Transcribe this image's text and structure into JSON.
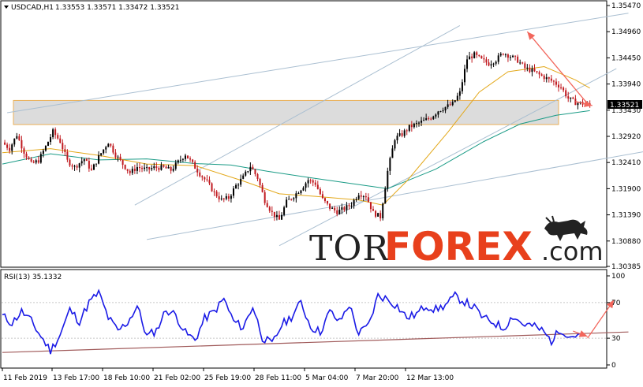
{
  "main_chart": {
    "header": {
      "symbol": "USDCAD,H1",
      "quotes": "1.33553 1.33571 1.33472 1.33521"
    },
    "current_price_label": "1.33521",
    "y_ticks": [
      "1.35470",
      "1.34960",
      "1.34450",
      "1.33940",
      "1.33430",
      "1.32920",
      "1.32410",
      "1.31900",
      "1.31390",
      "1.30880",
      "1.30385"
    ],
    "ylim": [
      1.30385,
      1.3547
    ]
  },
  "rsi_panel": {
    "header": "RSI(13) 35.1332",
    "y_ticks": [
      "100",
      "70",
      "30",
      "0"
    ]
  },
  "x_ticks": [
    "11 Feb 2019",
    "13 Feb 17:00",
    "18 Feb 10:00",
    "21 Feb 02:00",
    "25 Feb 19:00",
    "28 Feb 11:00",
    "5 Mar 04:00",
    "7 Mar 20:00",
    "12 Mar 13:00"
  ],
  "watermark": {
    "part1": "TOR",
    "part2": "FOREX",
    "part3": ".com"
  },
  "colors": {
    "bull_candle": "#000000",
    "bear_candle": "#c0191f",
    "ma_fast": "#e3a81a",
    "ma_slow": "#1a9b86",
    "trend_lines": "#aabfd1",
    "zone_fill": "#d6d6d6",
    "zone_border": "#e8a33a",
    "forecast_arrow": "#f2665c",
    "rsi_line": "#1a1ae6",
    "rsi_support": "#a05a5a"
  },
  "chart_data": {
    "type": "candlestick",
    "symbol": "USDCAD",
    "timeframe": "H1",
    "open": 1.33553,
    "high": 1.33571,
    "low": 1.33472,
    "close": 1.33521,
    "ylim": [
      1.30385,
      1.3547
    ],
    "price_path": [
      [
        0,
        1.328
      ],
      [
        3,
        1.3268
      ],
      [
        6,
        1.3295
      ],
      [
        9,
        1.3262
      ],
      [
        12,
        1.3238
      ],
      [
        15,
        1.3245
      ],
      [
        18,
        1.3272
      ],
      [
        21,
        1.3301
      ],
      [
        24,
        1.3282
      ],
      [
        27,
        1.3244
      ],
      [
        30,
        1.3232
      ],
      [
        34,
        1.3248
      ],
      [
        37,
        1.3225
      ],
      [
        40,
        1.3252
      ],
      [
        44,
        1.3281
      ],
      [
        47,
        1.3256
      ],
      [
        50,
        1.3238
      ],
      [
        53,
        1.3221
      ],
      [
        56,
        1.3232
      ],
      [
        60,
        1.3227
      ],
      [
        63,
        1.3231
      ],
      [
        67,
        1.3231
      ],
      [
        70,
        1.3226
      ],
      [
        73,
        1.3242
      ],
      [
        76,
        1.3257
      ],
      [
        79,
        1.3238
      ],
      [
        82,
        1.3219
      ],
      [
        85,
        1.3203
      ],
      [
        88,
        1.3182
      ],
      [
        91,
        1.3168
      ],
      [
        94,
        1.3172
      ],
      [
        97,
        1.3196
      ],
      [
        100,
        1.3212
      ],
      [
        103,
        1.3234
      ],
      [
        106,
        1.3211
      ],
      [
        109,
        1.3167
      ],
      [
        112,
        1.3143
      ],
      [
        115,
        1.3129
      ],
      [
        118,
        1.3164
      ],
      [
        121,
        1.3176
      ],
      [
        124,
        1.319
      ],
      [
        127,
        1.3207
      ],
      [
        130,
        1.32
      ],
      [
        133,
        1.3169
      ],
      [
        136,
        1.3153
      ],
      [
        139,
        1.3145
      ],
      [
        142,
        1.3151
      ],
      [
        145,
        1.316
      ],
      [
        148,
        1.3181
      ],
      [
        151,
        1.3176
      ],
      [
        154,
        1.3143
      ],
      [
        157,
        1.3135
      ],
      [
        160,
        1.3224
      ],
      [
        163,
        1.3288
      ],
      [
        166,
        1.3296
      ],
      [
        169,
        1.331
      ],
      [
        172,
        1.3316
      ],
      [
        175,
        1.3322
      ],
      [
        178,
        1.3329
      ],
      [
        181,
        1.3342
      ],
      [
        184,
        1.3349
      ],
      [
        187,
        1.3355
      ],
      [
        190,
        1.3377
      ],
      [
        193,
        1.3443
      ],
      [
        196,
        1.3451
      ],
      [
        199,
        1.3441
      ],
      [
        202,
        1.3434
      ],
      [
        205,
        1.3441
      ],
      [
        208,
        1.3455
      ],
      [
        211,
        1.3448
      ],
      [
        214,
        1.344
      ],
      [
        217,
        1.3425
      ],
      [
        220,
        1.342
      ],
      [
        223,
        1.3412
      ],
      [
        226,
        1.3405
      ],
      [
        229,
        1.3398
      ],
      [
        232,
        1.3388
      ],
      [
        235,
        1.3366
      ],
      [
        238,
        1.3358
      ],
      [
        241,
        1.3356
      ],
      [
        244,
        1.33521
      ]
    ],
    "ma_fast": [
      [
        0,
        1.326
      ],
      [
        20,
        1.3268
      ],
      [
        40,
        1.3255
      ],
      [
        60,
        1.3238
      ],
      [
        80,
        1.3235
      ],
      [
        100,
        1.3205
      ],
      [
        115,
        1.318
      ],
      [
        130,
        1.3175
      ],
      [
        148,
        1.3168
      ],
      [
        158,
        1.3158
      ],
      [
        168,
        1.3205
      ],
      [
        185,
        1.33
      ],
      [
        198,
        1.3378
      ],
      [
        210,
        1.3418
      ],
      [
        225,
        1.3428
      ],
      [
        238,
        1.3402
      ],
      [
        244,
        1.3386
      ]
    ],
    "ma_slow": [
      [
        0,
        1.3238
      ],
      [
        20,
        1.3258
      ],
      [
        40,
        1.3246
      ],
      [
        60,
        1.3248
      ],
      [
        80,
        1.3239
      ],
      [
        95,
        1.3236
      ],
      [
        110,
        1.3224
      ],
      [
        130,
        1.321
      ],
      [
        145,
        1.32
      ],
      [
        160,
        1.319
      ],
      [
        180,
        1.3228
      ],
      [
        200,
        1.3282
      ],
      [
        215,
        1.3316
      ],
      [
        230,
        1.3333
      ],
      [
        244,
        1.3342
      ]
    ],
    "resistance_zone": [
      1.3315,
      1.3362
    ],
    "forecast": {
      "from": [
        244,
        1.335
      ],
      "to": [
        218,
        1.3496
      ],
      "pivot": [
        245,
        1.33521
      ]
    },
    "rsi": {
      "period": 13,
      "value": 35.1332,
      "levels": [
        30,
        70
      ],
      "ylim": [
        0,
        100
      ],
      "series": [
        [
          0,
          55
        ],
        [
          4,
          47
        ],
        [
          8,
          60
        ],
        [
          12,
          49
        ],
        [
          16,
          32
        ],
        [
          20,
          16
        ],
        [
          24,
          34
        ],
        [
          28,
          62
        ],
        [
          32,
          49
        ],
        [
          36,
          70
        ],
        [
          40,
          81
        ],
        [
          44,
          53
        ],
        [
          48,
          38
        ],
        [
          52,
          48
        ],
        [
          56,
          66
        ],
        [
          60,
          32
        ],
        [
          64,
          39
        ],
        [
          68,
          62
        ],
        [
          72,
          56
        ],
        [
          76,
          36
        ],
        [
          80,
          28
        ],
        [
          84,
          52
        ],
        [
          88,
          60
        ],
        [
          92,
          74
        ],
        [
          96,
          49
        ],
        [
          100,
          42
        ],
        [
          104,
          66
        ],
        [
          108,
          31
        ],
        [
          112,
          23
        ],
        [
          116,
          45
        ],
        [
          120,
          54
        ],
        [
          124,
          70
        ],
        [
          128,
          43
        ],
        [
          132,
          37
        ],
        [
          136,
          60
        ],
        [
          140,
          48
        ],
        [
          144,
          68
        ],
        [
          148,
          35
        ],
        [
          152,
          44
        ],
        [
          156,
          78
        ],
        [
          160,
          74
        ],
        [
          164,
          66
        ],
        [
          168,
          53
        ],
        [
          172,
          57
        ],
        [
          176,
          67
        ],
        [
          180,
          62
        ],
        [
          184,
          67
        ],
        [
          188,
          77
        ],
        [
          192,
          71
        ],
        [
          196,
          64
        ],
        [
          200,
          52
        ],
        [
          204,
          48
        ],
        [
          208,
          41
        ],
        [
          212,
          55
        ],
        [
          216,
          46
        ],
        [
          220,
          44
        ],
        [
          224,
          39
        ],
        [
          228,
          27
        ],
        [
          232,
          40
        ],
        [
          236,
          32
        ],
        [
          240,
          35.1332
        ]
      ],
      "support_line": [
        [
          0,
          14
        ],
        [
          260,
          37
        ]
      ],
      "forecast_arrow": {
        "from": [
          243,
          30
        ],
        "to": [
          254,
          73
        ],
        "pivot": [
          243,
          32
        ]
      }
    },
    "trend_channel": {
      "upper_outer": [
        [
          2,
          1.3338
        ],
        [
          260,
          1.3532
        ]
      ],
      "lower_outer": [
        [
          60,
          1.3091
        ],
        [
          300,
          1.329
        ]
      ],
      "inner_upper": [
        [
          55,
          1.3158
        ],
        [
          190,
          1.3508
        ]
      ],
      "inner_lower": [
        [
          115,
          1.3079
        ],
        [
          255,
          1.3424
        ]
      ]
    }
  }
}
